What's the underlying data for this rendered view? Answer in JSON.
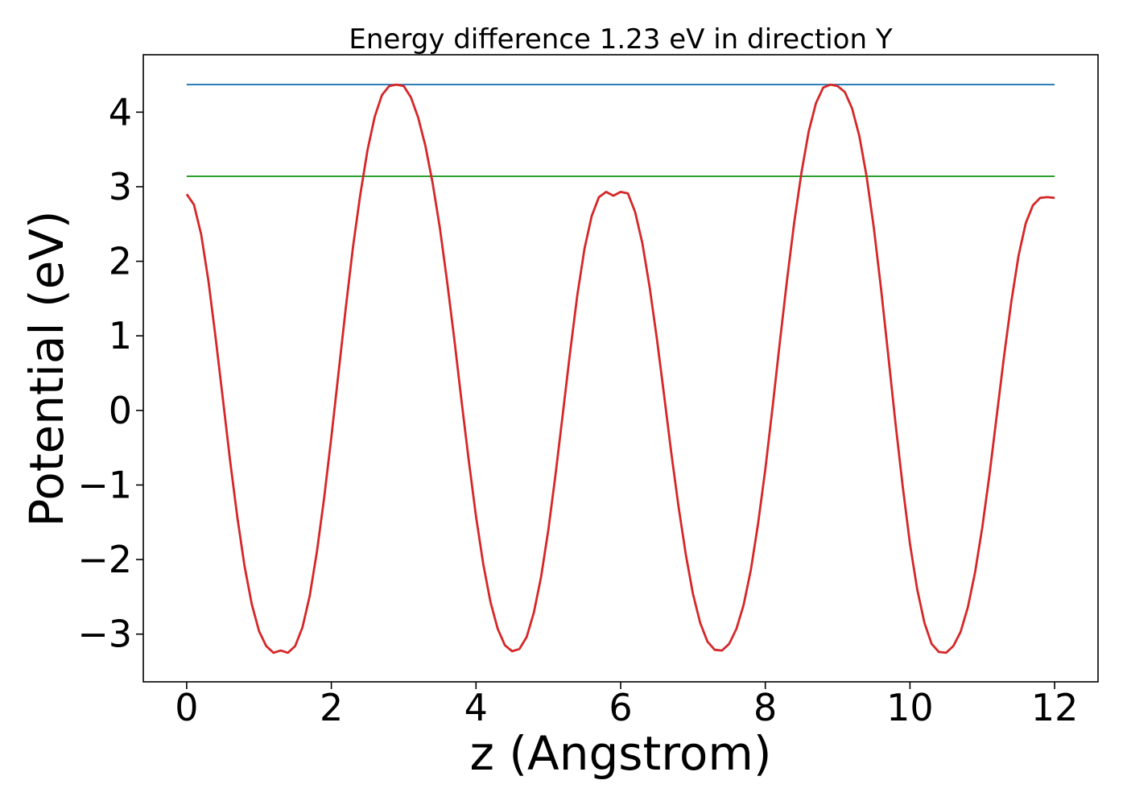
{
  "chart_data": {
    "type": "line",
    "title": "Energy difference 1.23 eV in direction Y",
    "xlabel": "z (Angstrom)",
    "ylabel": "Potential (eV)",
    "xlim": [
      -0.6,
      12.6
    ],
    "ylim": [
      -3.64,
      4.77
    ],
    "x_ticks": [
      0,
      2,
      4,
      6,
      8,
      10,
      12
    ],
    "x_tick_labels": [
      "0",
      "2",
      "4",
      "6",
      "8",
      "10",
      "12"
    ],
    "y_ticks": [
      -3,
      -2,
      -1,
      0,
      1,
      2,
      3,
      4
    ],
    "y_tick_labels": [
      "−3",
      "−2",
      "−1",
      "0",
      "1",
      "2",
      "3",
      "4"
    ],
    "grid": false,
    "series": [
      {
        "color": "#1f77b4",
        "style": "horizontal",
        "x": [
          0,
          12
        ],
        "y": [
          4.37,
          4.37
        ]
      },
      {
        "color": "#2ca02c",
        "style": "horizontal",
        "x": [
          0,
          12
        ],
        "y": [
          3.14,
          3.14
        ]
      },
      {
        "color": "#d62728",
        "style": "curve",
        "x": [
          0,
          0.1,
          0.2,
          0.3,
          0.4,
          0.5,
          0.6,
          0.7,
          0.8,
          0.9,
          1.0,
          1.1,
          1.2,
          1.3,
          1.4,
          1.5,
          1.6,
          1.7,
          1.8,
          1.9,
          2.0,
          2.1,
          2.2,
          2.3,
          2.4,
          2.5,
          2.6,
          2.7,
          2.8,
          2.9,
          3.0,
          3.1,
          3.2,
          3.3,
          3.4,
          3.5,
          3.6,
          3.7,
          3.8,
          3.9,
          4.0,
          4.1,
          4.2,
          4.3,
          4.4,
          4.5,
          4.6,
          4.7,
          4.8,
          4.9,
          5.0,
          5.1,
          5.2,
          5.3,
          5.4,
          5.5,
          5.6,
          5.7,
          5.8,
          5.9,
          6.0,
          6.1,
          6.2,
          6.3,
          6.4,
          6.5,
          6.6,
          6.7,
          6.8,
          6.9,
          7.0,
          7.1,
          7.2,
          7.3,
          7.4,
          7.5,
          7.6,
          7.7,
          7.8,
          7.9,
          8.0,
          8.1,
          8.2,
          8.3,
          8.4,
          8.5,
          8.6,
          8.7,
          8.8,
          8.9,
          9.0,
          9.1,
          9.2,
          9.3,
          9.4,
          9.5,
          9.6,
          9.7,
          9.8,
          9.9,
          10.0,
          10.1,
          10.2,
          10.3,
          10.4,
          10.5,
          10.6,
          10.7,
          10.8,
          10.9,
          11.0,
          11.1,
          11.2,
          11.3,
          11.4,
          11.5,
          11.6,
          11.7,
          11.8,
          11.9,
          12.0
        ],
        "y": [
          2.9,
          2.76,
          2.36,
          1.74,
          0.98,
          0.16,
          -0.67,
          -1.43,
          -2.09,
          -2.6,
          -2.96,
          -3.16,
          -3.25,
          -3.22,
          -3.25,
          -3.16,
          -2.91,
          -2.49,
          -1.9,
          -1.18,
          -0.36,
          0.51,
          1.38,
          2.2,
          2.89,
          3.49,
          3.94,
          4.23,
          4.35,
          4.37,
          4.35,
          4.2,
          3.93,
          3.55,
          3.05,
          2.45,
          1.73,
          0.96,
          0.13,
          -0.67,
          -1.42,
          -2.06,
          -2.57,
          -2.93,
          -3.15,
          -3.23,
          -3.2,
          -3.04,
          -2.71,
          -2.23,
          -1.6,
          -0.86,
          -0.05,
          0.77,
          1.54,
          2.17,
          2.61,
          2.86,
          2.93,
          2.88,
          2.93,
          2.91,
          2.66,
          2.24,
          1.66,
          0.97,
          0.21,
          -0.57,
          -1.29,
          -1.93,
          -2.46,
          -2.85,
          -3.1,
          -3.21,
          -3.22,
          -3.13,
          -2.93,
          -2.61,
          -2.14,
          -1.52,
          -0.79,
          0.04,
          0.91,
          1.75,
          2.52,
          3.19,
          3.74,
          4.12,
          4.33,
          4.37,
          4.35,
          4.27,
          4.05,
          3.68,
          3.14,
          2.45,
          1.63,
          0.74,
          -0.17,
          -1.02,
          -1.79,
          -2.4,
          -2.85,
          -3.13,
          -3.24,
          -3.25,
          -3.16,
          -2.97,
          -2.64,
          -2.17,
          -1.57,
          -0.86,
          -0.07,
          0.72,
          1.45,
          2.07,
          2.51,
          2.75,
          2.85,
          2.86,
          2.85
        ]
      }
    ]
  }
}
